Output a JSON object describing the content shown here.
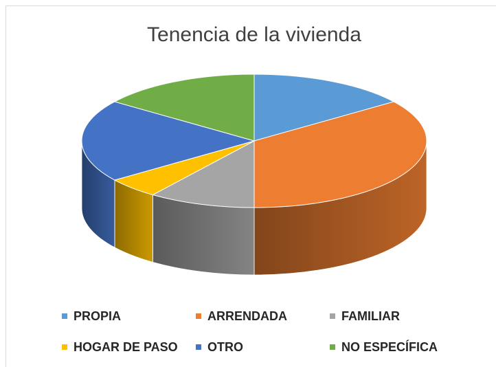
{
  "chart_data": {
    "type": "pie3d",
    "title": "Tenencia de la vivienda",
    "categories": [
      "PROPIA",
      "ARRENDADA",
      "FAMILIAR",
      "HOGAR DE PASO",
      "OTRO",
      "NO ESPECÍFICA"
    ],
    "values": [
      15,
      35,
      10,
      5,
      20,
      15
    ],
    "colors": [
      "#5b9bd5",
      "#ed7d31",
      "#a5a5a5",
      "#ffc000",
      "#4472c4",
      "#70ad47"
    ],
    "legend": "bottom"
  }
}
